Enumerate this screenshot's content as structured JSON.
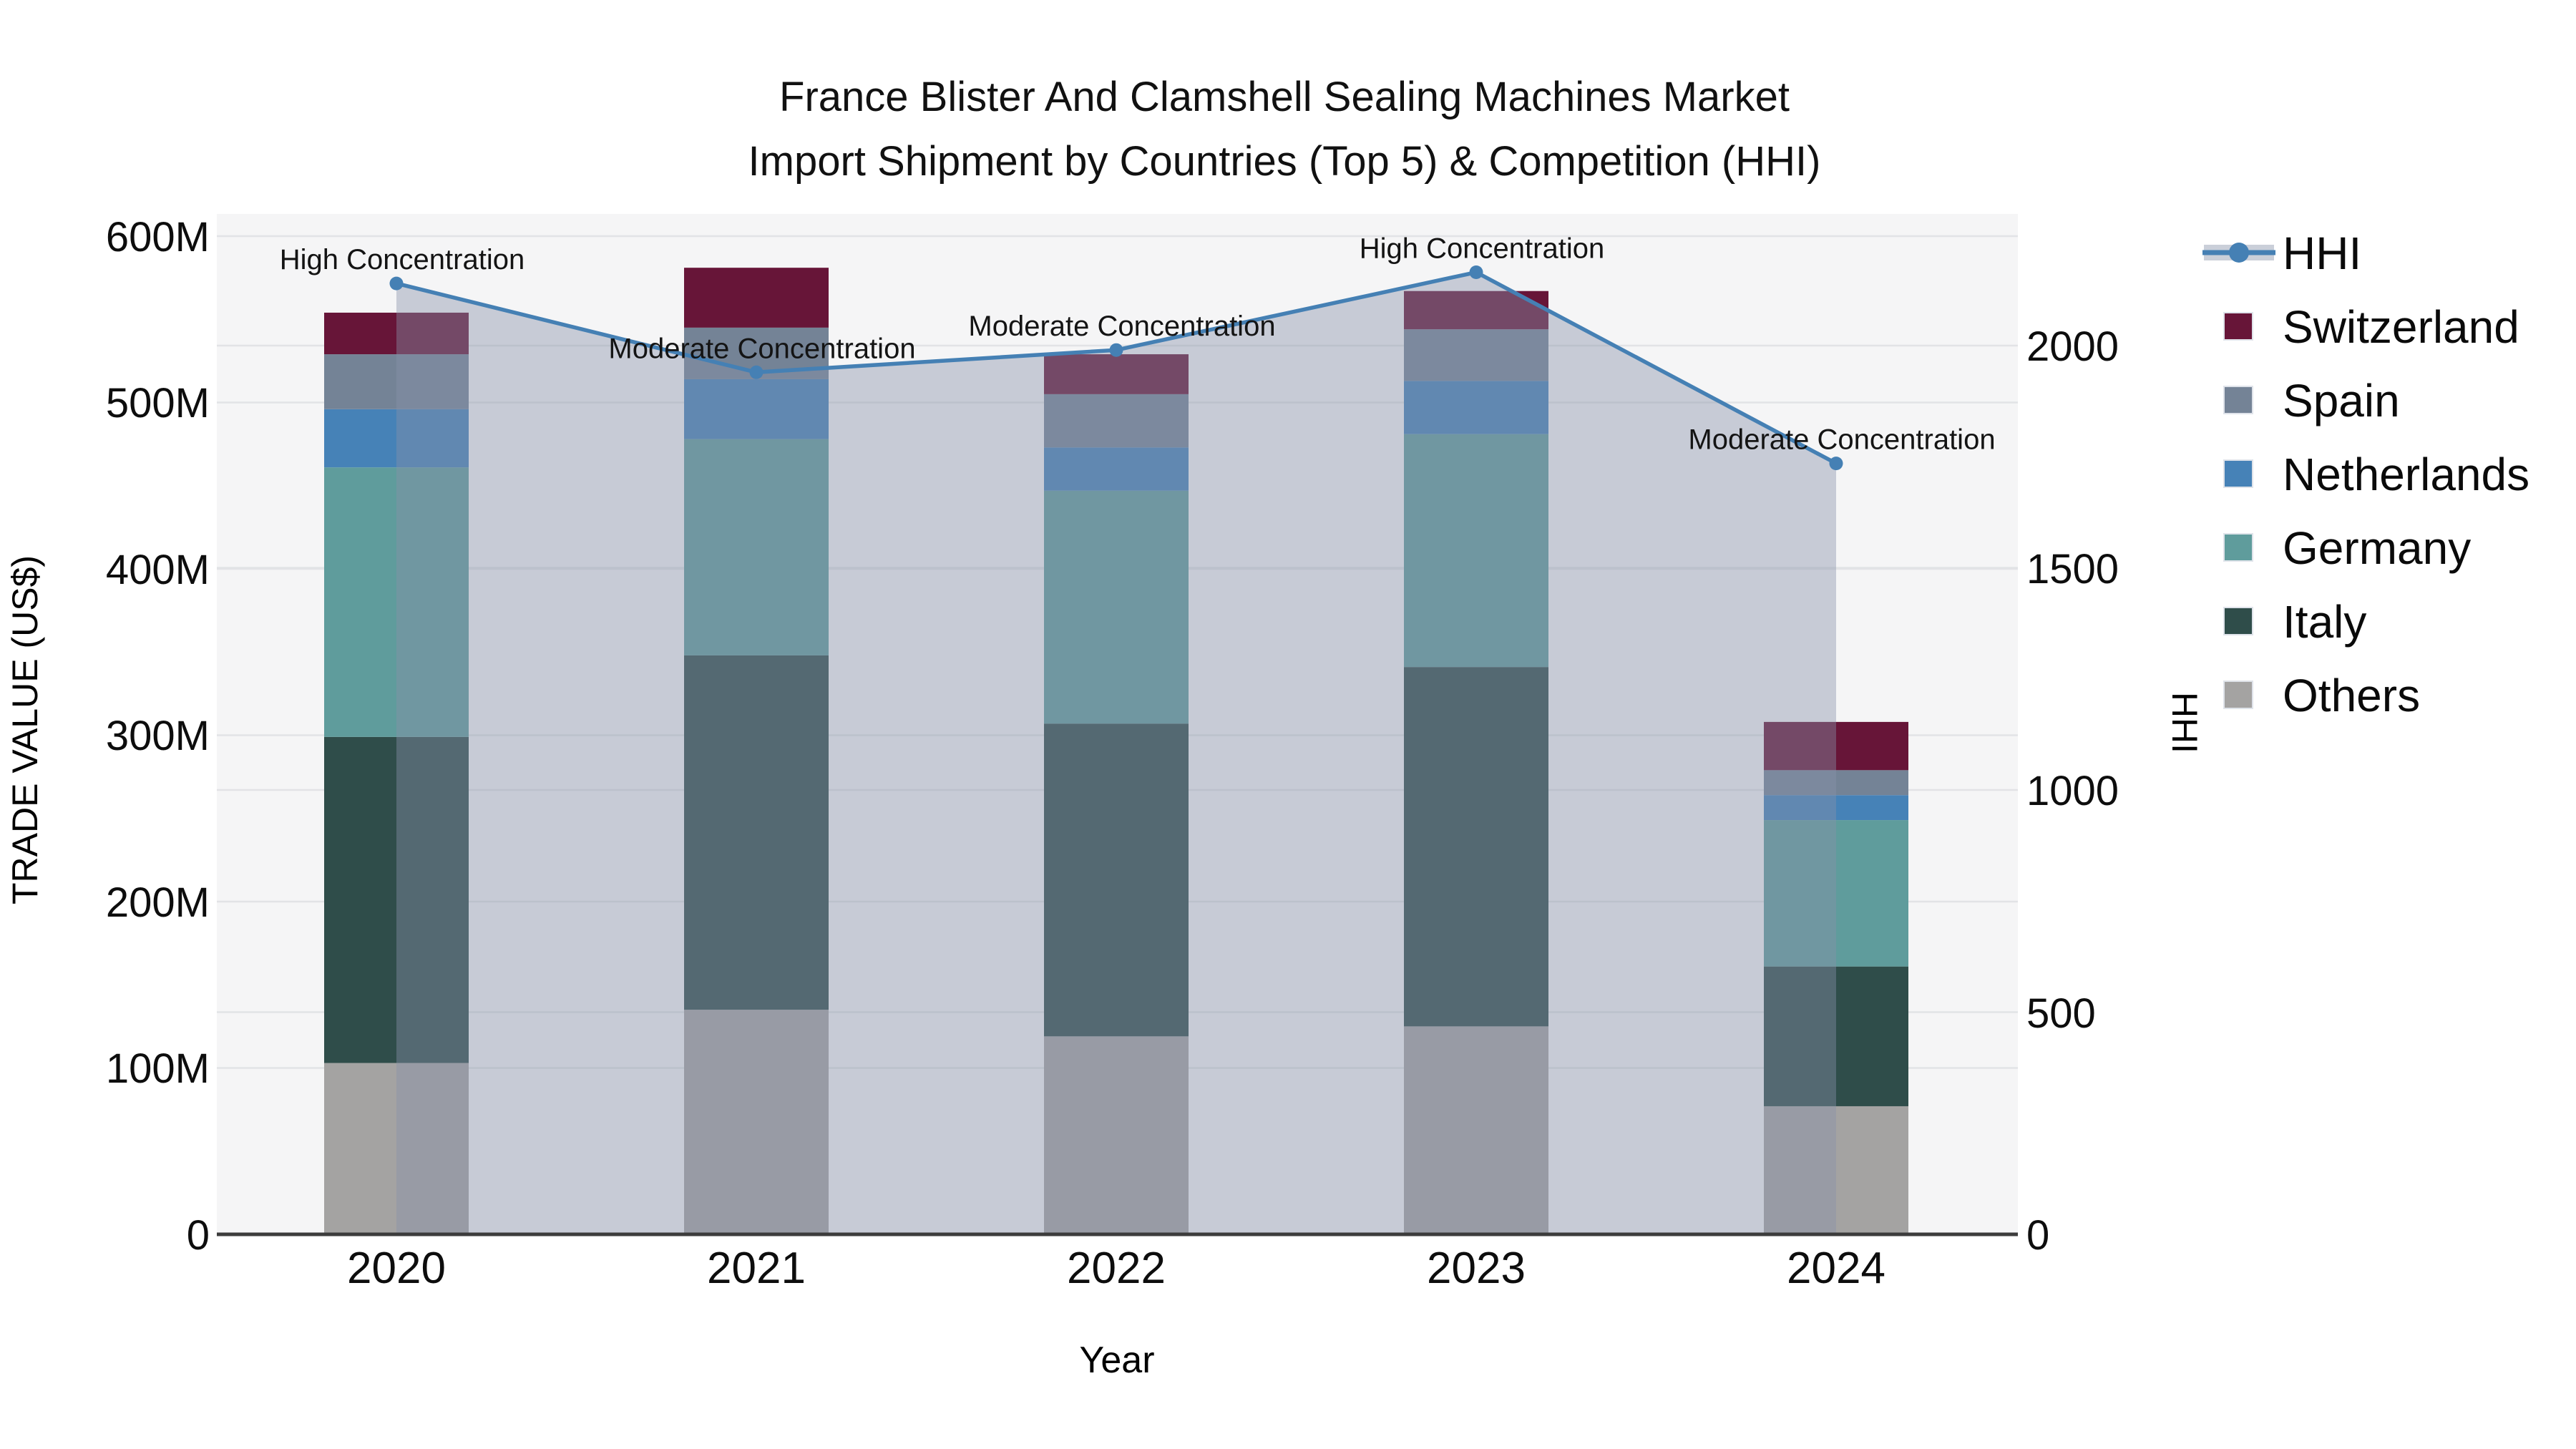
{
  "title": {
    "line1": "France Blister And Clamshell Sealing Machines Market",
    "line2": "Import Shipment by Countries (Top 5) & Competition (HHI)"
  },
  "axes": {
    "left": {
      "title": "TRADE VALUE (US$)",
      "ticks": [
        "0",
        "100M",
        "200M",
        "300M",
        "400M",
        "500M",
        "600M"
      ]
    },
    "right": {
      "title": "HHI",
      "ticks": [
        "0",
        "500",
        "1000",
        "1500",
        "2000"
      ]
    },
    "x": {
      "title": "Year",
      "categories": [
        "2020",
        "2021",
        "2022",
        "2023",
        "2024"
      ]
    }
  },
  "legend": {
    "items": [
      {
        "label": "HHI",
        "type": "line",
        "color": "#4580b4",
        "band_color": "#cacfd9"
      },
      {
        "label": "Switzerland",
        "type": "swatch",
        "color": "#671538"
      },
      {
        "label": "Spain",
        "type": "swatch",
        "color": "#748396"
      },
      {
        "label": "Netherlands",
        "type": "swatch",
        "color": "#4682b7"
      },
      {
        "label": "Germany",
        "type": "swatch",
        "color": "#5f9c9c"
      },
      {
        "label": "Italy",
        "type": "swatch",
        "color": "#2f4d4a"
      },
      {
        "label": "Others",
        "type": "swatch",
        "color": "#a4a3a2"
      }
    ]
  },
  "chart_data": {
    "type": "stacked-bar+line",
    "title": "France Blister And Clamshell Sealing Machines Market — Import Shipment by Countries (Top 5) & Competition (HHI)",
    "categories": [
      "2020",
      "2021",
      "2022",
      "2023",
      "2024"
    ],
    "bar_unit": "Trade value, US$ millions",
    "stack_order_bottom_to_top": [
      "Others",
      "Italy",
      "Germany",
      "Netherlands",
      "Spain",
      "Switzerland"
    ],
    "series": [
      {
        "name": "Others",
        "values": [
          103,
          135,
          119,
          125,
          77
        ]
      },
      {
        "name": "Italy",
        "values": [
          196,
          213,
          188,
          216,
          84
        ]
      },
      {
        "name": "Germany",
        "values": [
          162,
          130,
          140,
          140,
          88
        ]
      },
      {
        "name": "Netherlands",
        "values": [
          35,
          36,
          26,
          32,
          15
        ]
      },
      {
        "name": "Spain",
        "values": [
          33,
          31,
          32,
          31,
          15
        ]
      },
      {
        "name": "Switzerland",
        "values": [
          25,
          36,
          24,
          23,
          29
        ]
      }
    ],
    "bar_totals": [
      554,
      581,
      529,
      567,
      308
    ],
    "line": {
      "name": "HHI",
      "axis": "right",
      "values": [
        2140,
        1940,
        1990,
        2165,
        1735
      ]
    },
    "annotations": [
      "High Concentration",
      "Moderate Concentration",
      "Moderate Concentration",
      "High Concentration",
      "Moderate Concentration"
    ],
    "left_axis": {
      "label": "TRADE VALUE (US$)",
      "range": [
        0,
        613
      ],
      "tick_step": 100
    },
    "right_axis": {
      "label": "HHI",
      "range": [
        0,
        2296
      ],
      "tick_step": 500
    },
    "legend_position": "right",
    "grid": "horizontal gridlines at both left (100M) and right (500 HHI) ticks"
  },
  "colors": {
    "page_bg": "#ffffff",
    "plot_bg": "#f5f5f6",
    "gridline": "#e2e3e6",
    "axis_line": "#3c3c3c",
    "hhi_line": "#4580b4",
    "hhi_area_fill": "rgba(136,146,170,0.42)",
    "annotation_text": "#141414"
  }
}
